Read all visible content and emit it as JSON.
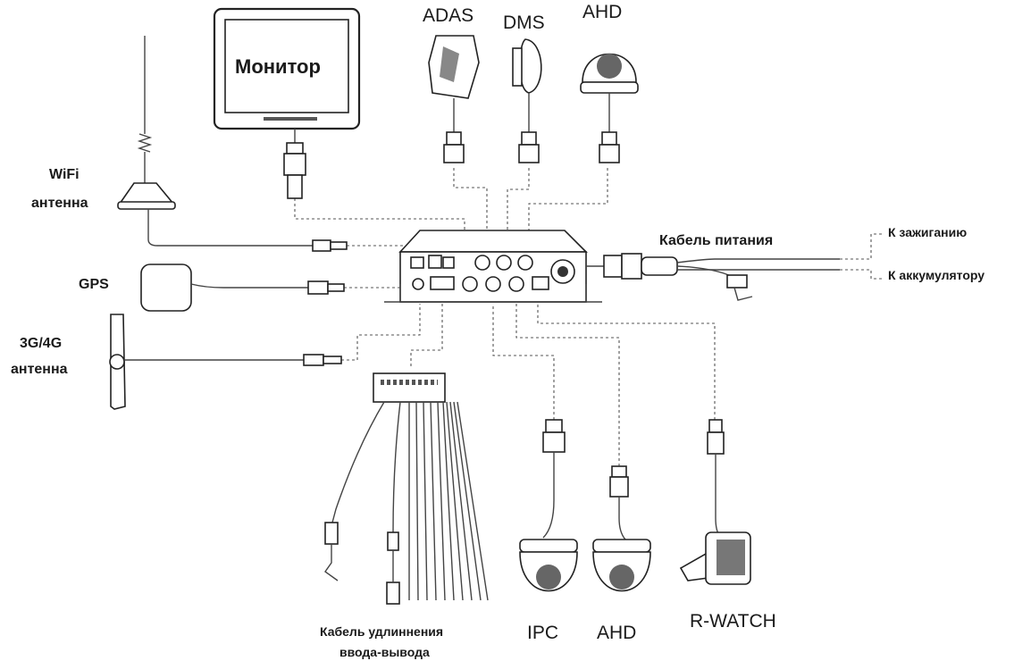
{
  "labels": {
    "monitor": "Монитор",
    "adas": "ADAS",
    "dms": "DMS",
    "ahd_top": "AHD",
    "wifi_line1": "WiFi",
    "wifi_line2": "антенна",
    "gps": "GPS",
    "cellular_line1": "3G/4G",
    "cellular_line2": "антенна",
    "power_cable": "Кабель питания",
    "to_ignition": "К зажиганию",
    "to_battery": "К аккумулятору",
    "io_cable_line1": "Кабель удлиннения",
    "io_cable_line2": "ввода-вывода",
    "ipc": "IPC",
    "ahd_bottom": "AHD",
    "rwatch": "R-WATCH"
  },
  "colors": {
    "line": "#444444",
    "outline": "#222222",
    "text": "#1a1a1a",
    "background": "#ffffff"
  }
}
